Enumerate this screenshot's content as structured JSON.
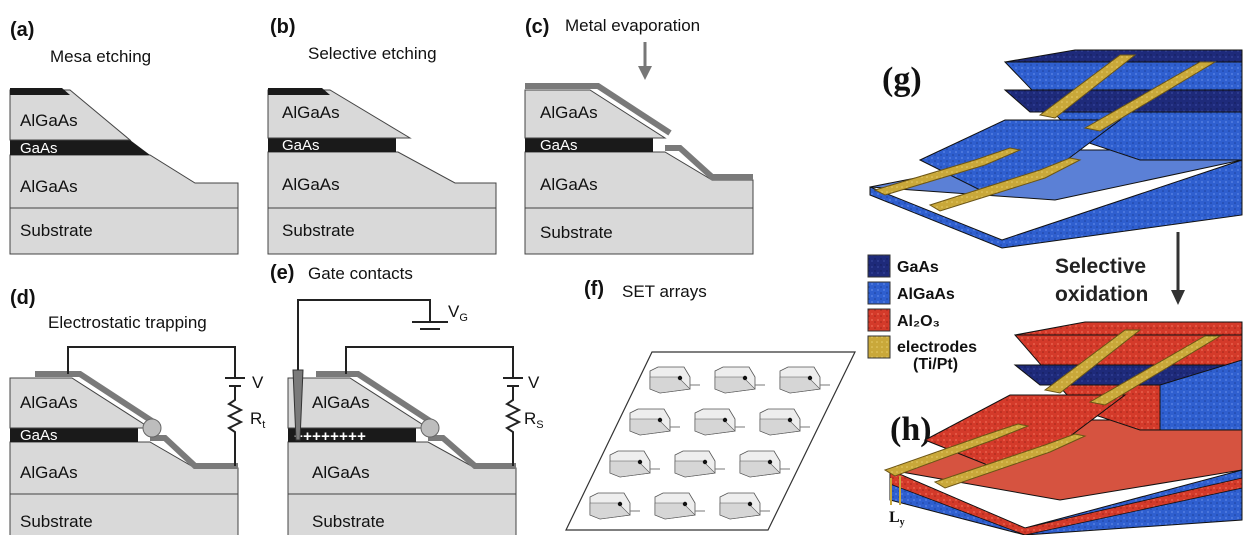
{
  "panels": {
    "a": {
      "label": "(a)",
      "caption": "Mesa etching",
      "layers": [
        "AlGaAs",
        "GaAs",
        "AlGaAs",
        "Substrate"
      ]
    },
    "b": {
      "label": "(b)",
      "caption": "Selective etching",
      "layers": [
        "AlGaAs",
        "GaAs",
        "AlGaAs",
        "Substrate"
      ]
    },
    "c": {
      "label": "(c)",
      "caption": "Metal evaporation",
      "layers": [
        "AlGaAs",
        "GaAs",
        "AlGaAs",
        "Substrate"
      ]
    },
    "d": {
      "label": "(d)",
      "caption": "Electrostatic trapping",
      "layers": [
        "AlGaAs",
        "GaAs",
        "AlGaAs",
        "Substrate"
      ],
      "voltage": "V",
      "resistor": "R",
      "resistor_sub": "t"
    },
    "e": {
      "label": "(e)",
      "caption": "Gate contacts",
      "layers": [
        "AlGaAs",
        "AlGaAs",
        "Substrate"
      ],
      "gate_voltage": "V",
      "gate_sub": "G",
      "charges": "++++++++",
      "voltage": "V",
      "resistor": "R",
      "resistor_sub": "S"
    },
    "f": {
      "label": "(f)",
      "caption": "SET arrays"
    },
    "g": {
      "label": "(g)"
    },
    "h": {
      "label": "(h)",
      "dimension": "L",
      "dimension_sub": "y"
    }
  },
  "legend": {
    "items": [
      {
        "text": "GaAs",
        "color": "#1e2a7a"
      },
      {
        "text": "AlGaAs",
        "color": "#2f5fcf"
      },
      {
        "text": "Al₂O₃",
        "color": "#d43a2a"
      },
      {
        "text": "electrodes",
        "text2": "(Ti/Pt)",
        "color": "#c9a83a"
      }
    ]
  },
  "process": {
    "line1": "Selective",
    "line2": "oxidation"
  },
  "colors": {
    "layer_fill": "#d9d9d9",
    "gaas_band": "#1a1a1a",
    "metal": "#7a7a7a"
  }
}
